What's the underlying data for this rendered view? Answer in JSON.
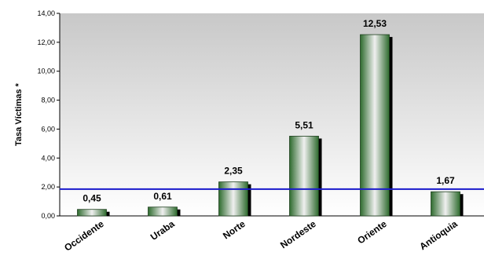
{
  "chart_data": {
    "type": "bar",
    "title": "",
    "xlabel": "",
    "ylabel": "Tasa Víctimas *",
    "ylim": [
      0,
      14
    ],
    "yticks": [
      "0,00",
      "2,00",
      "4,00",
      "6,00",
      "8,00",
      "10,00",
      "12,00",
      "14,00"
    ],
    "categories": [
      "Occidente",
      "Uraba",
      "Norte",
      "Nordeste",
      "Oriente",
      "Antioquia"
    ],
    "values": [
      0.45,
      0.61,
      2.35,
      5.51,
      12.53,
      1.67
    ],
    "data_labels": [
      "0,45",
      "0,61",
      "2,35",
      "5,51",
      "12,53",
      "1,67"
    ],
    "reference_line": {
      "value": 1.85,
      "color": "#1a1acc"
    },
    "bar_color": "#2e6b2e",
    "background_gradient": [
      "#c8c8c8",
      "#ffffff"
    ],
    "grid": false,
    "legend": "none"
  }
}
